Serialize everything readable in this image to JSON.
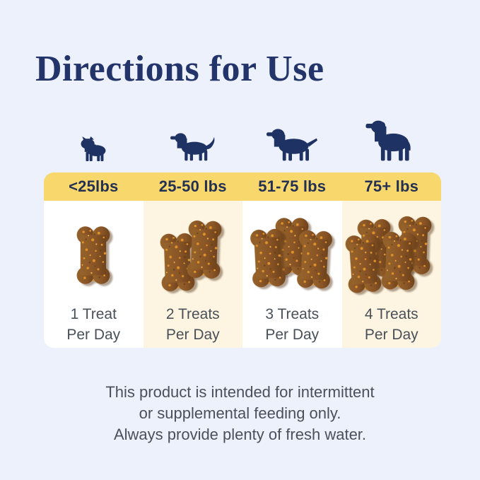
{
  "page": {
    "title": "Directions for Use"
  },
  "columns": [
    {
      "weight_label": "<25lbs",
      "dog_icon": "french-bulldog-icon",
      "treats_per_day": 1,
      "serving_line1": "1 Treat",
      "serving_line2": "Per Day"
    },
    {
      "weight_label": "25-50 lbs",
      "dog_icon": "golden-retriever-icon",
      "treats_per_day": 2,
      "serving_line1": "2 Treats",
      "serving_line2": "Per Day"
    },
    {
      "weight_label": "51-75 lbs",
      "dog_icon": "labrador-icon",
      "treats_per_day": 3,
      "serving_line1": "3 Treats",
      "serving_line2": "Per Day"
    },
    {
      "weight_label": "75+ lbs",
      "dog_icon": "rottweiler-icon",
      "treats_per_day": 4,
      "serving_line1": "4 Treats",
      "serving_line2": "Per Day"
    }
  ],
  "footer": {
    "lines": [
      "This product is intended for intermittent",
      "or supplemental feeding only.",
      "Always provide plenty of fresh water."
    ]
  },
  "colors": {
    "background": "#edf1fb",
    "band_yellow": "#f8d76c",
    "column_white": "#ffffff",
    "column_cream": "#fdf5e2",
    "navy": "#1e3263",
    "text_gray": "#4a5058",
    "treat_brown": "#8a5a26",
    "treat_speckle_orange": "#e0922a"
  }
}
